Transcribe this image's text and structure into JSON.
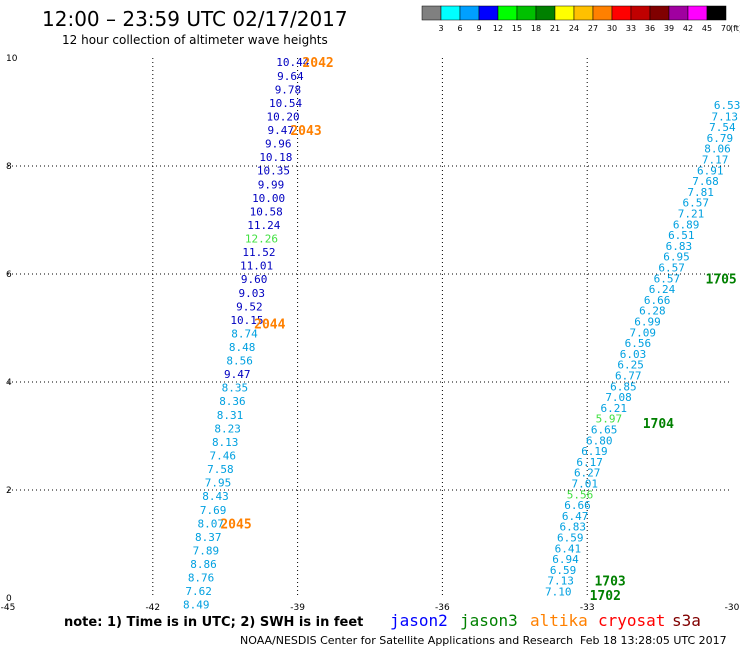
{
  "header": {
    "title": "12:00 – 23:59 UTC 02/17/2017",
    "subtitle": "12 hour collection of altimeter wave heights"
  },
  "colorbar": {
    "labels": [
      "3",
      "6",
      "9",
      "12",
      "15",
      "18",
      "21",
      "24",
      "27",
      "30",
      "33",
      "36",
      "39",
      "42",
      "45",
      "70"
    ],
    "unit": "(ft)",
    "colors": [
      "#808080",
      "#00ffff",
      "#00a0ff",
      "#0000ff",
      "#00ff00",
      "#00c000",
      "#008000",
      "#ffff00",
      "#ffc000",
      "#ff8000",
      "#ff0000",
      "#c00000",
      "#800000",
      "#a000a0",
      "#ff00ff",
      "#000000"
    ]
  },
  "footer": {
    "note": "note:  1) Time is in UTC; 2) SWH is in feet",
    "satellites": [
      {
        "name": "jason2",
        "color": "#0000ff"
      },
      {
        "name": "jason3",
        "color": "#008000"
      },
      {
        "name": "altika",
        "color": "#ff8000"
      },
      {
        "name": "cryosat",
        "color": "#ff0000"
      },
      {
        "name": "s3a",
        "color": "#800000"
      }
    ],
    "credit": "NOAA/NESDIS Center for Satellite Applications and Research",
    "timestamp": "Feb 18 13:28:05 UTC 2017"
  },
  "chart_data": {
    "type": "scatter",
    "xlim": [
      -45,
      -30
    ],
    "ylim": [
      0,
      10
    ],
    "xticks": [
      "-45",
      "-42",
      "-39",
      "-36",
      "-33",
      "-30"
    ],
    "yticks": [
      "0",
      "2",
      "4",
      "6",
      "8",
      "10"
    ],
    "grid": true,
    "tracks": [
      {
        "satellite": "altika",
        "points": [
          {
            "x": -39.1,
            "y": 9.93,
            "v": "10.44",
            "c": "#0000c0"
          },
          {
            "x": -39.15,
            "y": 9.67,
            "v": "9.64",
            "c": "#0000c0"
          },
          {
            "x": -39.2,
            "y": 9.42,
            "v": "9.78",
            "c": "#0000c0"
          },
          {
            "x": -39.25,
            "y": 9.17,
            "v": "10.54",
            "c": "#0000c0"
          },
          {
            "x": -39.3,
            "y": 8.92,
            "v": "10.20",
            "c": "#0000c0"
          },
          {
            "x": -39.35,
            "y": 8.67,
            "v": "9.47",
            "c": "#0000c0"
          },
          {
            "x": -39.4,
            "y": 8.42,
            "v": "9.96",
            "c": "#0000c0"
          },
          {
            "x": -39.45,
            "y": 8.17,
            "v": "10.18",
            "c": "#0000c0"
          },
          {
            "x": -39.5,
            "y": 7.92,
            "v": "10.35",
            "c": "#0000c0"
          },
          {
            "x": -39.55,
            "y": 7.66,
            "v": "9.99",
            "c": "#0000c0"
          },
          {
            "x": -39.6,
            "y": 7.41,
            "v": "10.00",
            "c": "#0000c0"
          },
          {
            "x": -39.65,
            "y": 7.16,
            "v": "10.58",
            "c": "#0000c0"
          },
          {
            "x": -39.7,
            "y": 6.91,
            "v": "11.24",
            "c": "#0000c0"
          },
          {
            "x": -39.75,
            "y": 6.66,
            "v": "12.26",
            "c": "#40e040"
          },
          {
            "x": -39.8,
            "y": 6.41,
            "v": "11.52",
            "c": "#0000c0"
          },
          {
            "x": -39.85,
            "y": 6.16,
            "v": "11.01",
            "c": "#0000c0"
          },
          {
            "x": -39.9,
            "y": 5.91,
            "v": "9.60",
            "c": "#0000c0"
          },
          {
            "x": -39.95,
            "y": 5.65,
            "v": "9.03",
            "c": "#0000c0"
          },
          {
            "x": -40.0,
            "y": 5.4,
            "v": "9.52",
            "c": "#0000c0"
          },
          {
            "x": -40.05,
            "y": 5.15,
            "v": "10.15",
            "c": "#0000c0"
          },
          {
            "x": -40.1,
            "y": 4.9,
            "v": "8.74",
            "c": "#00a0e0"
          },
          {
            "x": -40.15,
            "y": 4.65,
            "v": "8.48",
            "c": "#00a0e0"
          },
          {
            "x": -40.2,
            "y": 4.4,
            "v": "8.56",
            "c": "#00a0e0"
          },
          {
            "x": -40.25,
            "y": 4.15,
            "v": "9.47",
            "c": "#0000c0"
          },
          {
            "x": -40.3,
            "y": 3.9,
            "v": "8.35",
            "c": "#00a0e0"
          },
          {
            "x": -40.35,
            "y": 3.65,
            "v": "8.36",
            "c": "#00a0e0"
          },
          {
            "x": -40.4,
            "y": 3.39,
            "v": "8.31",
            "c": "#00a0e0"
          },
          {
            "x": -40.45,
            "y": 3.14,
            "v": "8.23",
            "c": "#00a0e0"
          },
          {
            "x": -40.5,
            "y": 2.89,
            "v": "8.13",
            "c": "#00a0e0"
          },
          {
            "x": -40.55,
            "y": 2.64,
            "v": "7.46",
            "c": "#00a0e0"
          },
          {
            "x": -40.6,
            "y": 2.39,
            "v": "7.58",
            "c": "#00a0e0"
          },
          {
            "x": -40.65,
            "y": 2.14,
            "v": "7.95",
            "c": "#00a0e0"
          },
          {
            "x": -40.7,
            "y": 1.89,
            "v": "8.43",
            "c": "#00a0e0"
          },
          {
            "x": -40.75,
            "y": 1.63,
            "v": "7.69",
            "c": "#00a0e0"
          },
          {
            "x": -40.8,
            "y": 1.38,
            "v": "8.07",
            "c": "#00a0e0"
          },
          {
            "x": -40.85,
            "y": 1.13,
            "v": "8.37",
            "c": "#00a0e0"
          },
          {
            "x": -40.9,
            "y": 0.88,
            "v": "7.89",
            "c": "#00a0e0"
          },
          {
            "x": -40.95,
            "y": 0.63,
            "v": "8.86",
            "c": "#00a0e0"
          },
          {
            "x": -41.0,
            "y": 0.38,
            "v": "8.76",
            "c": "#00a0e0"
          },
          {
            "x": -41.05,
            "y": 0.13,
            "v": "7.62",
            "c": "#00a0e0"
          },
          {
            "x": -41.1,
            "y": -0.12,
            "v": "8.49",
            "c": "#00a0e0"
          }
        ],
        "times": [
          {
            "x": -38.9,
            "y": 9.93,
            "label": "2042"
          },
          {
            "x": -39.15,
            "y": 8.67,
            "label": "2043"
          },
          {
            "x": -39.9,
            "y": 5.08,
            "label": "2044"
          },
          {
            "x": -40.6,
            "y": 1.38,
            "label": "2045"
          }
        ]
      },
      {
        "satellite": "jason3",
        "points": [
          {
            "x": -30.1,
            "y": 9.13,
            "v": "6.53",
            "c": "#00a0e0"
          },
          {
            "x": -30.15,
            "y": 8.92,
            "v": "7.13",
            "c": "#00a0e0"
          },
          {
            "x": -30.2,
            "y": 8.72,
            "v": "7.54",
            "c": "#00a0e0"
          },
          {
            "x": -30.25,
            "y": 8.52,
            "v": "6.79",
            "c": "#00a0e0"
          },
          {
            "x": -30.3,
            "y": 8.32,
            "v": "8.06",
            "c": "#00a0e0"
          },
          {
            "x": -30.35,
            "y": 8.12,
            "v": "7.17",
            "c": "#00a0e0"
          },
          {
            "x": -30.45,
            "y": 7.92,
            "v": "6.91",
            "c": "#00a0e0"
          },
          {
            "x": -30.55,
            "y": 7.72,
            "v": "7.68",
            "c": "#00a0e0"
          },
          {
            "x": -30.65,
            "y": 7.52,
            "v": "7.81",
            "c": "#00a0e0"
          },
          {
            "x": -30.75,
            "y": 7.32,
            "v": "6.57",
            "c": "#00a0e0"
          },
          {
            "x": -30.85,
            "y": 7.12,
            "v": "7.21",
            "c": "#00a0e0"
          },
          {
            "x": -30.95,
            "y": 6.92,
            "v": "6.89",
            "c": "#00a0e0"
          },
          {
            "x": -31.05,
            "y": 6.72,
            "v": "6.51",
            "c": "#00a0e0"
          },
          {
            "x": -31.1,
            "y": 6.52,
            "v": "6.83",
            "c": "#00a0e0"
          },
          {
            "x": -31.15,
            "y": 6.32,
            "v": "6.95",
            "c": "#00a0e0"
          },
          {
            "x": -31.25,
            "y": 6.12,
            "v": "6.57",
            "c": "#00a0e0"
          },
          {
            "x": -31.35,
            "y": 5.92,
            "v": "6.57",
            "c": "#00a0e0"
          },
          {
            "x": -31.45,
            "y": 5.72,
            "v": "6.24",
            "c": "#00a0e0"
          },
          {
            "x": -31.55,
            "y": 5.52,
            "v": "6.66",
            "c": "#00a0e0"
          },
          {
            "x": -31.65,
            "y": 5.32,
            "v": "6.28",
            "c": "#00a0e0"
          },
          {
            "x": -31.75,
            "y": 5.12,
            "v": "6.99",
            "c": "#00a0e0"
          },
          {
            "x": -31.85,
            "y": 4.92,
            "v": "7.09",
            "c": "#00a0e0"
          },
          {
            "x": -31.95,
            "y": 4.72,
            "v": "6.56",
            "c": "#00a0e0"
          },
          {
            "x": -32.05,
            "y": 4.52,
            "v": "6.03",
            "c": "#00a0e0"
          },
          {
            "x": -32.1,
            "y": 4.32,
            "v": "6.25",
            "c": "#00a0e0"
          },
          {
            "x": -32.15,
            "y": 4.12,
            "v": "6.77",
            "c": "#00a0e0"
          },
          {
            "x": -32.25,
            "y": 3.92,
            "v": "6.85",
            "c": "#00a0e0"
          },
          {
            "x": -32.35,
            "y": 3.72,
            "v": "7.08",
            "c": "#00a0e0"
          },
          {
            "x": -32.45,
            "y": 3.52,
            "v": "6.21",
            "c": "#00a0e0"
          },
          {
            "x": -32.55,
            "y": 3.32,
            "v": "5.97",
            "c": "#40e040"
          },
          {
            "x": -32.65,
            "y": 3.12,
            "v": "6.65",
            "c": "#00a0e0"
          },
          {
            "x": -32.75,
            "y": 2.92,
            "v": "6.80",
            "c": "#00a0e0"
          },
          {
            "x": -32.85,
            "y": 2.72,
            "v": "6.19",
            "c": "#00a0e0"
          },
          {
            "x": -32.95,
            "y": 2.52,
            "v": "6.17",
            "c": "#00a0e0"
          },
          {
            "x": -33.0,
            "y": 2.32,
            "v": "6.27",
            "c": "#00a0e0"
          },
          {
            "x": -33.05,
            "y": 2.12,
            "v": "7.01",
            "c": "#00a0e0"
          },
          {
            "x": -33.15,
            "y": 1.92,
            "v": "5.56",
            "c": "#40e040"
          },
          {
            "x": -33.2,
            "y": 1.72,
            "v": "6.66",
            "c": "#00a0e0"
          },
          {
            "x": -33.25,
            "y": 1.52,
            "v": "6.47",
            "c": "#00a0e0"
          },
          {
            "x": -33.3,
            "y": 1.32,
            "v": "6.83",
            "c": "#00a0e0"
          },
          {
            "x": -33.35,
            "y": 1.12,
            "v": "6.59",
            "c": "#00a0e0"
          },
          {
            "x": -33.4,
            "y": 0.92,
            "v": "6.41",
            "c": "#00a0e0"
          },
          {
            "x": -33.45,
            "y": 0.72,
            "v": "6.94",
            "c": "#00a0e0"
          },
          {
            "x": -33.5,
            "y": 0.52,
            "v": "6.59",
            "c": "#00a0e0"
          },
          {
            "x": -33.55,
            "y": 0.32,
            "v": "7.13",
            "c": "#00a0e0"
          },
          {
            "x": -33.6,
            "y": 0.12,
            "v": "7.10",
            "c": "#00a0e0"
          }
        ],
        "times": [
          {
            "x": -30.55,
            "y": 5.92,
            "label": "1705"
          },
          {
            "x": -31.85,
            "y": 3.24,
            "label": "1704"
          },
          {
            "x": -32.85,
            "y": 0.32,
            "label": "1703"
          },
          {
            "x": -32.95,
            "y": 0.06,
            "label": "1702"
          }
        ]
      }
    ]
  }
}
